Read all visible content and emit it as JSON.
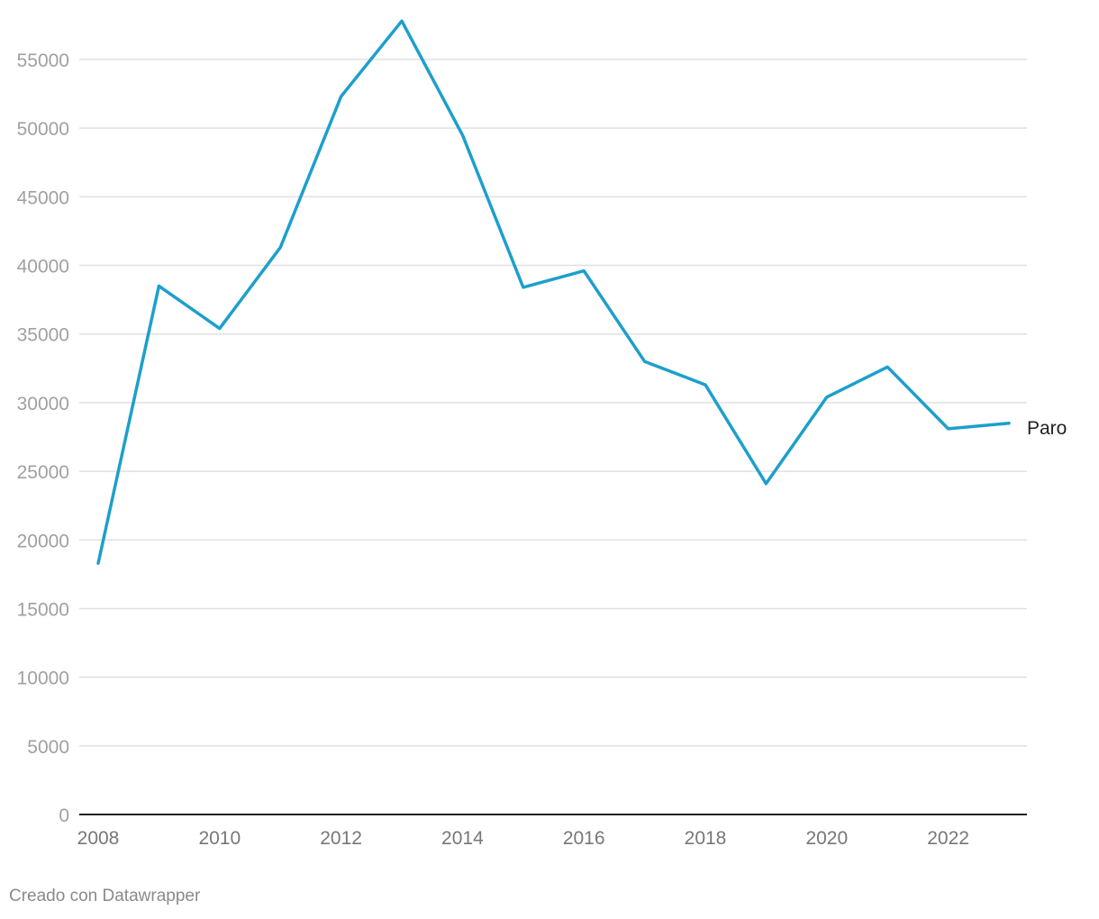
{
  "chart_data": {
    "type": "line",
    "title": "",
    "xlabel": "",
    "ylabel": "",
    "x": [
      2008,
      2009,
      2010,
      2011,
      2012,
      2013,
      2014,
      2015,
      2016,
      2017,
      2018,
      2019,
      2020,
      2021,
      2022,
      2023
    ],
    "series": [
      {
        "name": "Paro",
        "color": "#1d9fcc",
        "values": [
          18300,
          38500,
          35400,
          41300,
          52300,
          57800,
          49500,
          38400,
          39600,
          33000,
          31300,
          24100,
          30400,
          32600,
          28100,
          28500
        ]
      }
    ],
    "xlim": [
      2008,
      2023
    ],
    "ylim": [
      0,
      55000
    ],
    "x_ticks": [
      "2008",
      "2010",
      "2012",
      "2014",
      "2016",
      "2018",
      "2020",
      "2022"
    ],
    "y_ticks": [
      "0",
      "5000",
      "10000",
      "15000",
      "20000",
      "25000",
      "30000",
      "35000",
      "40000",
      "45000",
      "50000",
      "55000"
    ],
    "grid": true,
    "legend": "direct-label-at-line-end"
  },
  "footer": {
    "credit": "Creado con Datawrapper"
  },
  "colors": {
    "line": "#1d9fcc",
    "grid": "#e0e0e0",
    "baseline": "#222222"
  }
}
